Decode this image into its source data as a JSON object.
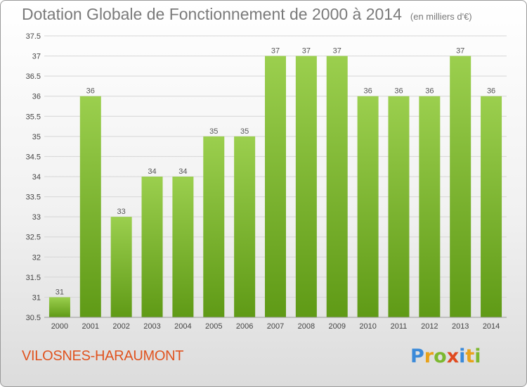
{
  "header": {
    "title": "Dotation Globale de Fonctionnement de 2000 à 2014",
    "subtitle": "(en milliers d'€)"
  },
  "footer": {
    "commune": "VILOSNES-HARAUMONT",
    "logo_letters": [
      "P",
      "r",
      "o",
      "x",
      "i",
      "t",
      "i"
    ],
    "logo_colors": [
      "#3b8ad9",
      "#e8a21a",
      "#7cb82f",
      "#e04a1f",
      "#3b8ad9",
      "#e8a21a",
      "#7cb82f"
    ]
  },
  "colors": {
    "bar_light": "#9bcf4e",
    "bar_dark": "#5f9a16",
    "grid": "#d6d6d6",
    "commune_text": "#e0531f"
  },
  "chart_data": {
    "type": "bar",
    "categories": [
      "2000",
      "2001",
      "2002",
      "2003",
      "2004",
      "2005",
      "2006",
      "2007",
      "2008",
      "2009",
      "2010",
      "2011",
      "2012",
      "2013",
      "2014"
    ],
    "values": [
      31,
      36,
      33,
      34,
      34,
      35,
      35,
      37,
      37,
      37,
      36,
      36,
      36,
      37,
      36
    ],
    "value_labels": [
      "31",
      "36",
      "33",
      "34",
      "34",
      "35",
      "35",
      "37",
      "37",
      "37",
      "36",
      "36",
      "36",
      "37",
      "36"
    ],
    "ylim": [
      30.5,
      37.5
    ],
    "yticks": [
      30.5,
      31,
      31.5,
      32,
      32.5,
      33,
      33.5,
      34,
      34.5,
      35,
      35.5,
      36,
      36.5,
      37,
      37.5
    ],
    "ytick_labels": [
      "30.5",
      "31",
      "31.5",
      "32",
      "32.5",
      "33",
      "33.5",
      "34",
      "34.5",
      "35",
      "35.5",
      "36",
      "36.5",
      "37",
      "37.5"
    ],
    "grid": true,
    "legend": false
  }
}
